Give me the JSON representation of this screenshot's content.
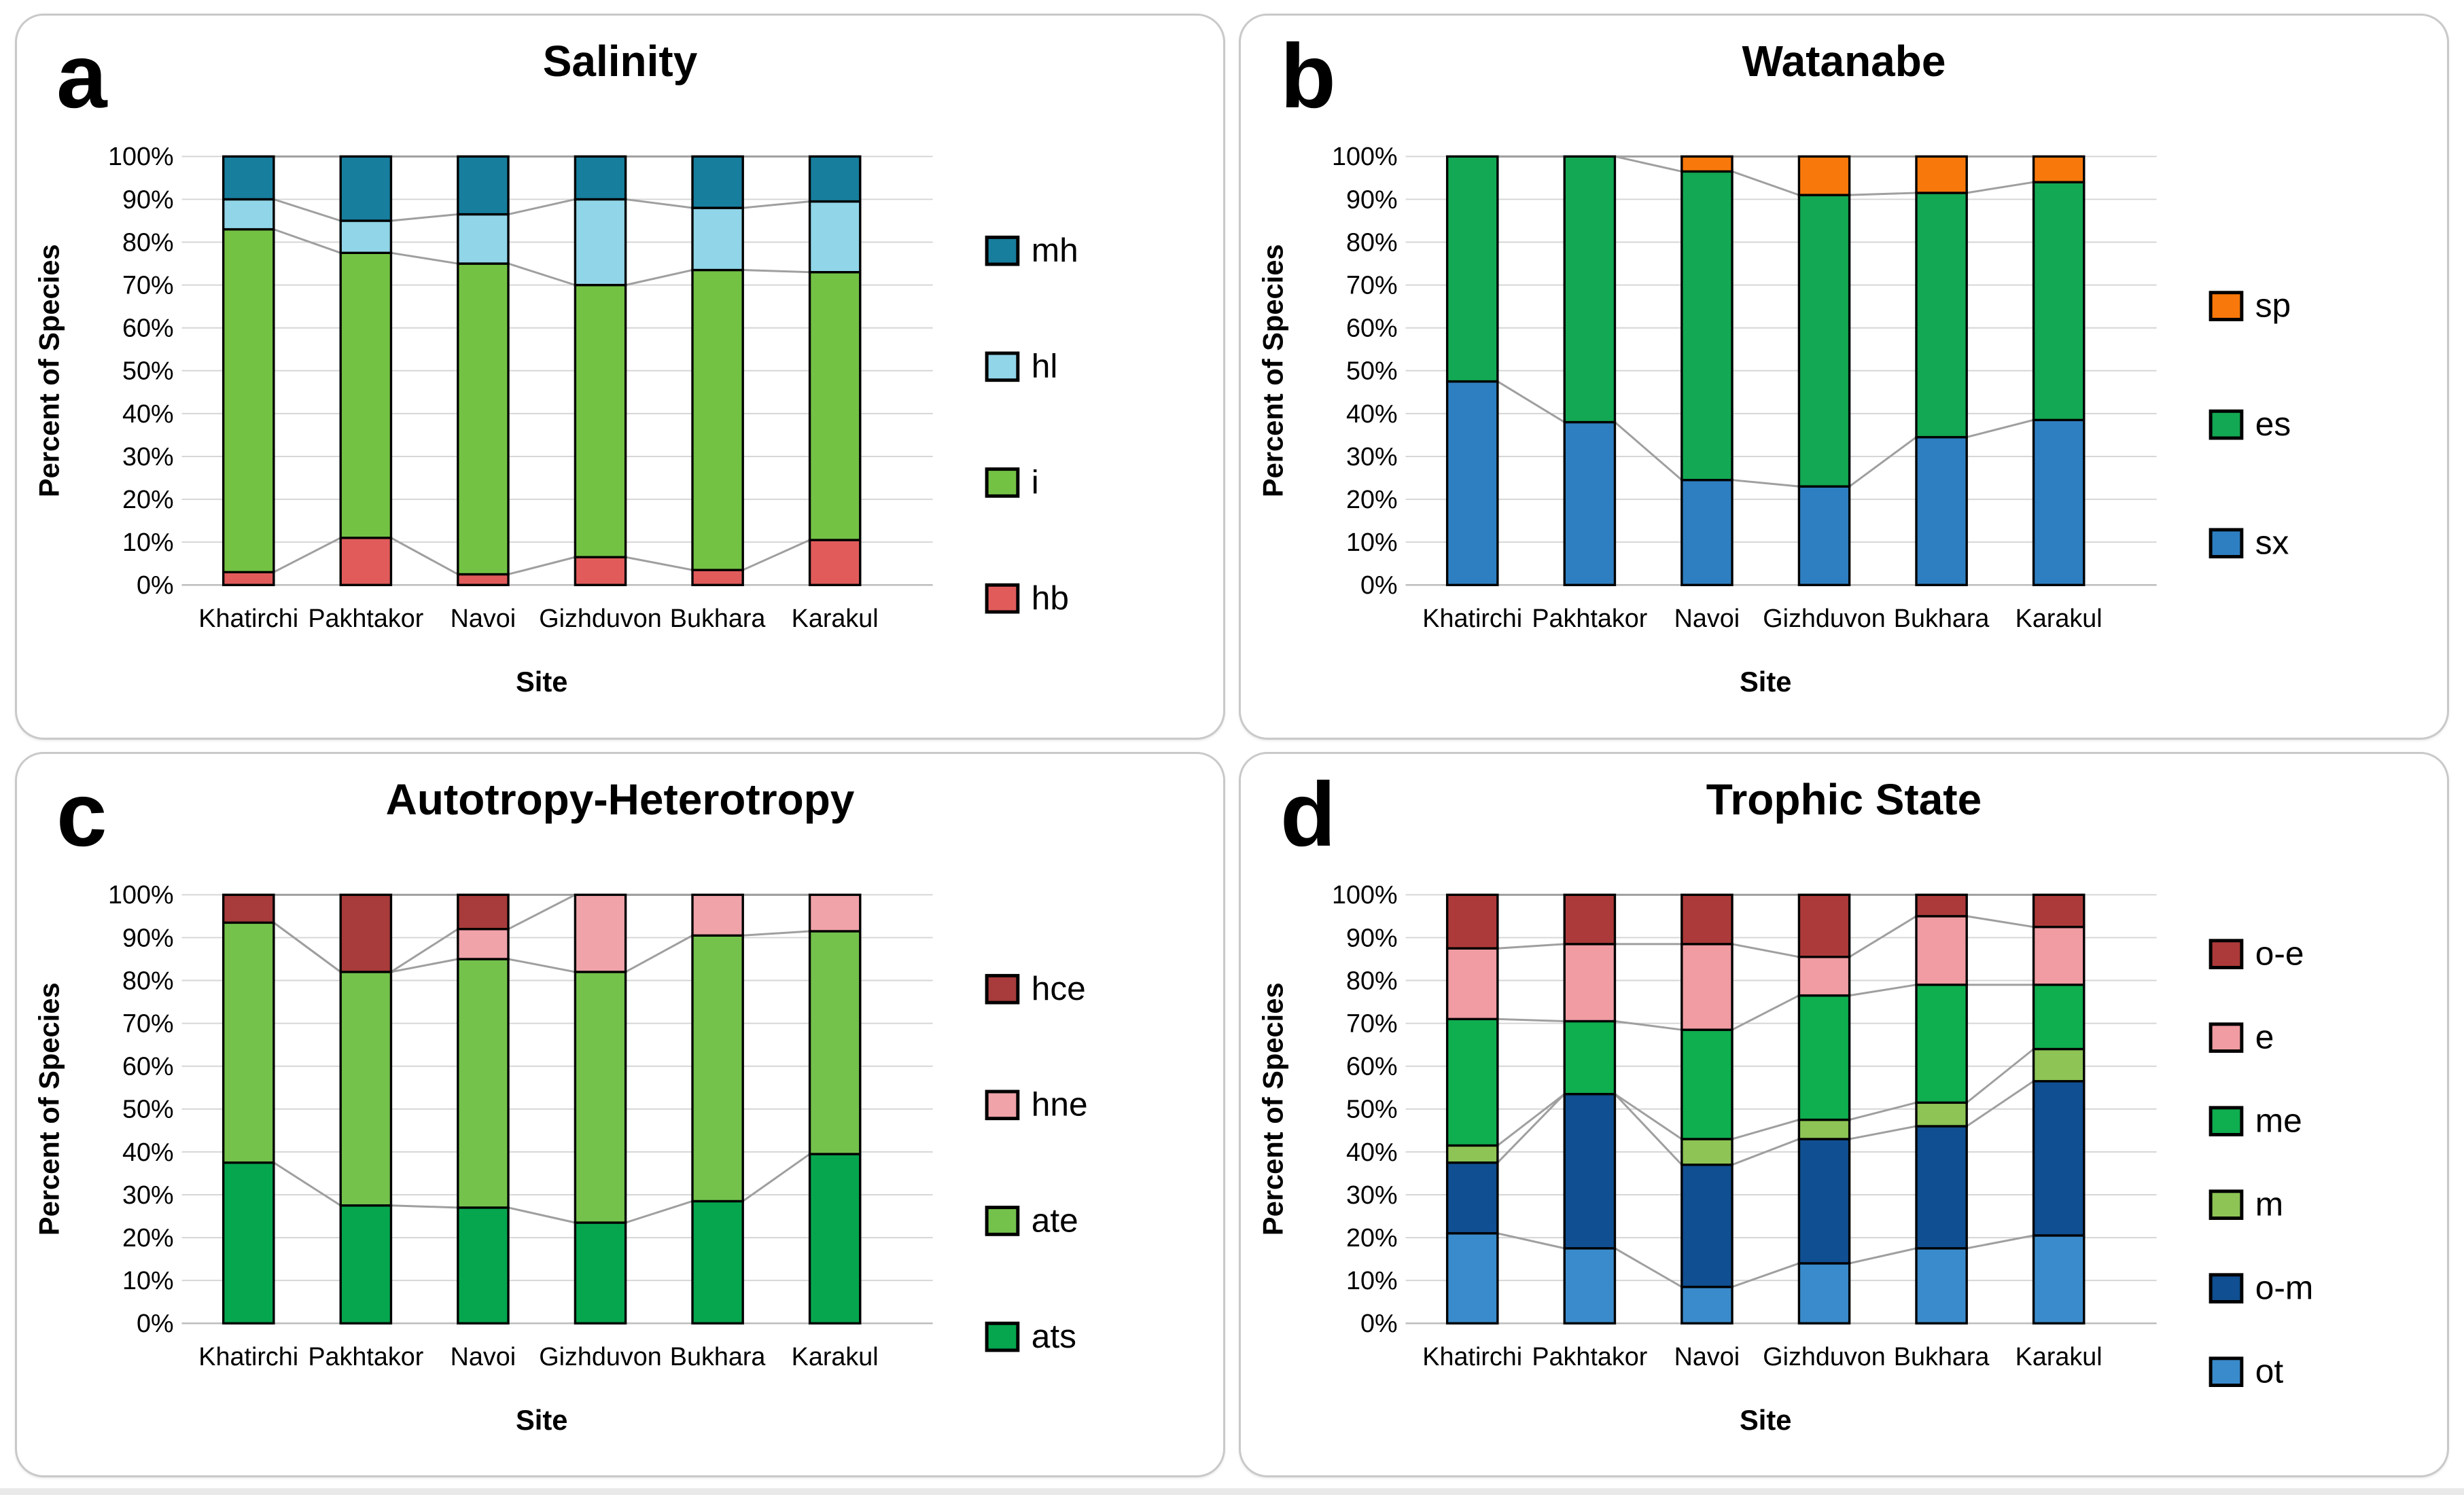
{
  "chart_data": [
    {
      "panel_letter": "a",
      "title": "Salinity",
      "type": "bar",
      "stacked": true,
      "percent_stacked": true,
      "xlabel": "Site",
      "ylabel": "Percent of Species",
      "categories": [
        "Khatirchi",
        "Pakhtakor",
        "Navoi",
        "Gizhduvon",
        "Bukhara",
        "Karakul"
      ],
      "ylim": [
        0,
        100
      ],
      "ytick_labels": [
        "0%",
        "10%",
        "20%",
        "30%",
        "40%",
        "50%",
        "60%",
        "70%",
        "80%",
        "90%",
        "100%"
      ],
      "grid": true,
      "legend_position": "right",
      "legend_order_top_to_bottom": [
        "mh",
        "hl",
        "i",
        "hb"
      ],
      "series_lines": true,
      "series": [
        {
          "name": "hb",
          "color": "#E15B5B",
          "values": [
            3,
            11,
            2.5,
            6.5,
            3.5,
            10.5
          ]
        },
        {
          "name": "i",
          "color": "#74C244",
          "values": [
            80,
            66.5,
            72.5,
            63.5,
            70,
            62.5
          ]
        },
        {
          "name": "hl",
          "color": "#90D5E8",
          "values": [
            7,
            7.5,
            11.5,
            20,
            14.5,
            16.5
          ]
        },
        {
          "name": "mh",
          "color": "#177E9D",
          "values": [
            10,
            15,
            13.5,
            10,
            12,
            10.5
          ]
        }
      ]
    },
    {
      "panel_letter": "b",
      "title": "Watanabe",
      "type": "bar",
      "stacked": true,
      "percent_stacked": true,
      "xlabel": "Site",
      "ylabel": "Percent of Species",
      "categories": [
        "Khatirchi",
        "Pakhtakor",
        "Navoi",
        "Gizhduvon",
        "Bukhara",
        "Karakul"
      ],
      "ylim": [
        0,
        100
      ],
      "ytick_labels": [
        "0%",
        "10%",
        "20%",
        "30%",
        "40%",
        "50%",
        "60%",
        "70%",
        "80%",
        "90%",
        "100%"
      ],
      "grid": true,
      "legend_position": "right",
      "legend_order_top_to_bottom": [
        "sp",
        "es",
        "sx"
      ],
      "series_lines": true,
      "series": [
        {
          "name": "sx",
          "color": "#2E7FC1",
          "values": [
            47.5,
            38,
            24.5,
            23,
            34.5,
            38.5
          ]
        },
        {
          "name": "es",
          "color": "#13A853",
          "values": [
            52.5,
            62,
            72,
            68,
            57,
            55.5
          ]
        },
        {
          "name": "sp",
          "color": "#F8780B",
          "values": [
            0,
            0,
            3.5,
            9,
            8.5,
            6
          ]
        }
      ]
    },
    {
      "panel_letter": "c",
      "title": "Autotropy-Heterotropy",
      "type": "bar",
      "stacked": true,
      "percent_stacked": true,
      "xlabel": "Site",
      "ylabel": "Percent of Species",
      "categories": [
        "Khatirchi",
        "Pakhtakor",
        "Navoi",
        "Gizhduvon",
        "Bukhara",
        "Karakul"
      ],
      "ylim": [
        0,
        100
      ],
      "ytick_labels": [
        "0%",
        "10%",
        "20%",
        "30%",
        "40%",
        "50%",
        "60%",
        "70%",
        "80%",
        "90%",
        "100%"
      ],
      "grid": true,
      "legend_position": "right",
      "legend_order_top_to_bottom": [
        "hce",
        "hne",
        "ate",
        "ats"
      ],
      "series_lines": true,
      "series": [
        {
          "name": "ats",
          "color": "#06A64F",
          "values": [
            37.5,
            27.5,
            27,
            23.5,
            28.5,
            39.5
          ]
        },
        {
          "name": "ate",
          "color": "#74C24C",
          "values": [
            56,
            54.5,
            58,
            58.5,
            62,
            52
          ]
        },
        {
          "name": "hne",
          "color": "#F0A3A9",
          "values": [
            0,
            0,
            7,
            18,
            9.5,
            8.5
          ]
        },
        {
          "name": "hce",
          "color": "#A83B3B",
          "values": [
            6.5,
            18,
            8,
            0,
            0,
            0
          ]
        }
      ]
    },
    {
      "panel_letter": "d",
      "title": "Trophic State",
      "type": "bar",
      "stacked": true,
      "percent_stacked": true,
      "xlabel": "Site",
      "ylabel": "Percent of Species",
      "categories": [
        "Khatirchi",
        "Pakhtakor",
        "Navoi",
        "Gizhduvon",
        "Bukhara",
        "Karakul"
      ],
      "ylim": [
        0,
        100
      ],
      "ytick_labels": [
        "0%",
        "10%",
        "20%",
        "30%",
        "40%",
        "50%",
        "60%",
        "70%",
        "80%",
        "90%",
        "100%"
      ],
      "grid": true,
      "legend_position": "right",
      "legend_order_top_to_bottom": [
        "o-e",
        "e",
        "me",
        "m",
        "o-m",
        "ot"
      ],
      "series_lines": true,
      "series": [
        {
          "name": "ot",
          "color": "#3A8BCB",
          "values": [
            21,
            17.5,
            8.5,
            14,
            17.5,
            20.5
          ]
        },
        {
          "name": "o-m",
          "color": "#104F91",
          "values": [
            16.5,
            36,
            28.5,
            29,
            28.5,
            36
          ]
        },
        {
          "name": "m",
          "color": "#8DC455",
          "values": [
            4,
            0,
            6,
            4.5,
            5.5,
            7.5
          ]
        },
        {
          "name": "me",
          "color": "#0FAE4F",
          "values": [
            29.5,
            17,
            25.5,
            29,
            27.5,
            15
          ]
        },
        {
          "name": "e",
          "color": "#F09CA2",
          "values": [
            16.5,
            18,
            20,
            9,
            16,
            13.5
          ]
        },
        {
          "name": "o-e",
          "color": "#AD3A3A",
          "values": [
            12.5,
            11.5,
            11.5,
            14.5,
            5,
            7.5
          ]
        }
      ]
    }
  ],
  "style_colors": {
    "gridline": "#d6d6d6",
    "baseline": "#bdbdbd",
    "series_line": "#9f9f9f",
    "bar_outline": "#000000",
    "panel_border": "#c9c9c9"
  }
}
